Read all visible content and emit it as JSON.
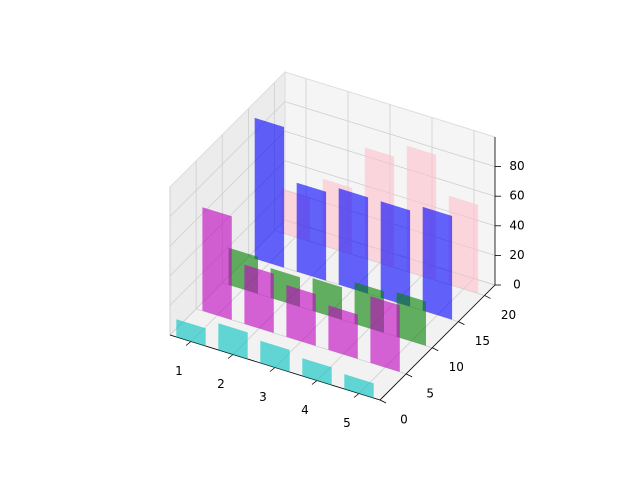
{
  "chart_data": {
    "type": "bar3d",
    "xticks": [
      1,
      2,
      3,
      4,
      5
    ],
    "xlim": [
      0.5,
      5.5
    ],
    "ylim": [
      0,
      22
    ],
    "yticks": [
      0,
      5,
      10,
      15,
      20
    ],
    "zlim": [
      0,
      100
    ],
    "zticks": [
      0,
      20,
      40,
      60,
      80
    ],
    "grid": true,
    "series": [
      {
        "color": "#00bfbf",
        "y": 0,
        "values": [
          12,
          18,
          15,
          12,
          10
        ]
      },
      {
        "color": "#bf00bf",
        "y": 5,
        "values": [
          70,
          40,
          35,
          30,
          45
        ]
      },
      {
        "color": "#008000",
        "y": 10,
        "values": [
          25,
          20,
          22,
          28,
          30
        ]
      },
      {
        "color": "#0000ff",
        "y": 15,
        "values": [
          95,
          60,
          65,
          65,
          70
        ]
      },
      {
        "color": "#ffc0cb",
        "y": 20,
        "values": [
          30,
          45,
          75,
          85,
          60
        ]
      }
    ]
  }
}
